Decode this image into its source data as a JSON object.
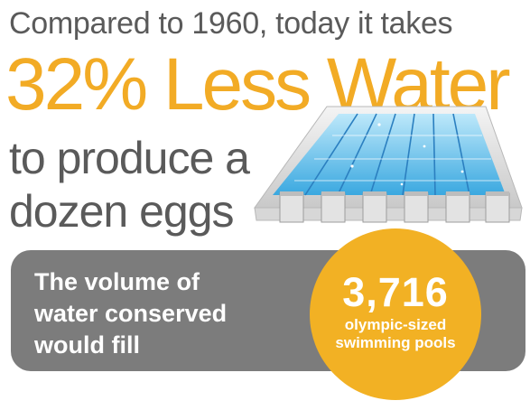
{
  "intro": "Compared to 1960, today it takes",
  "headline": "32% Less Water",
  "lines": [
    "to produce a",
    "dozen eggs"
  ],
  "banner": {
    "lines": [
      "The volume of",
      "water conserved",
      "would fill"
    ]
  },
  "callout": {
    "number": "3,716",
    "lines": [
      "olympic-sized",
      "swimming pools"
    ]
  },
  "colors": {
    "accent": "#f2ab25",
    "text": "#5a5a5a",
    "banner": "#7c7c7c",
    "water": "#4fb8e8"
  },
  "illustration": "swimming-pool-illustration"
}
